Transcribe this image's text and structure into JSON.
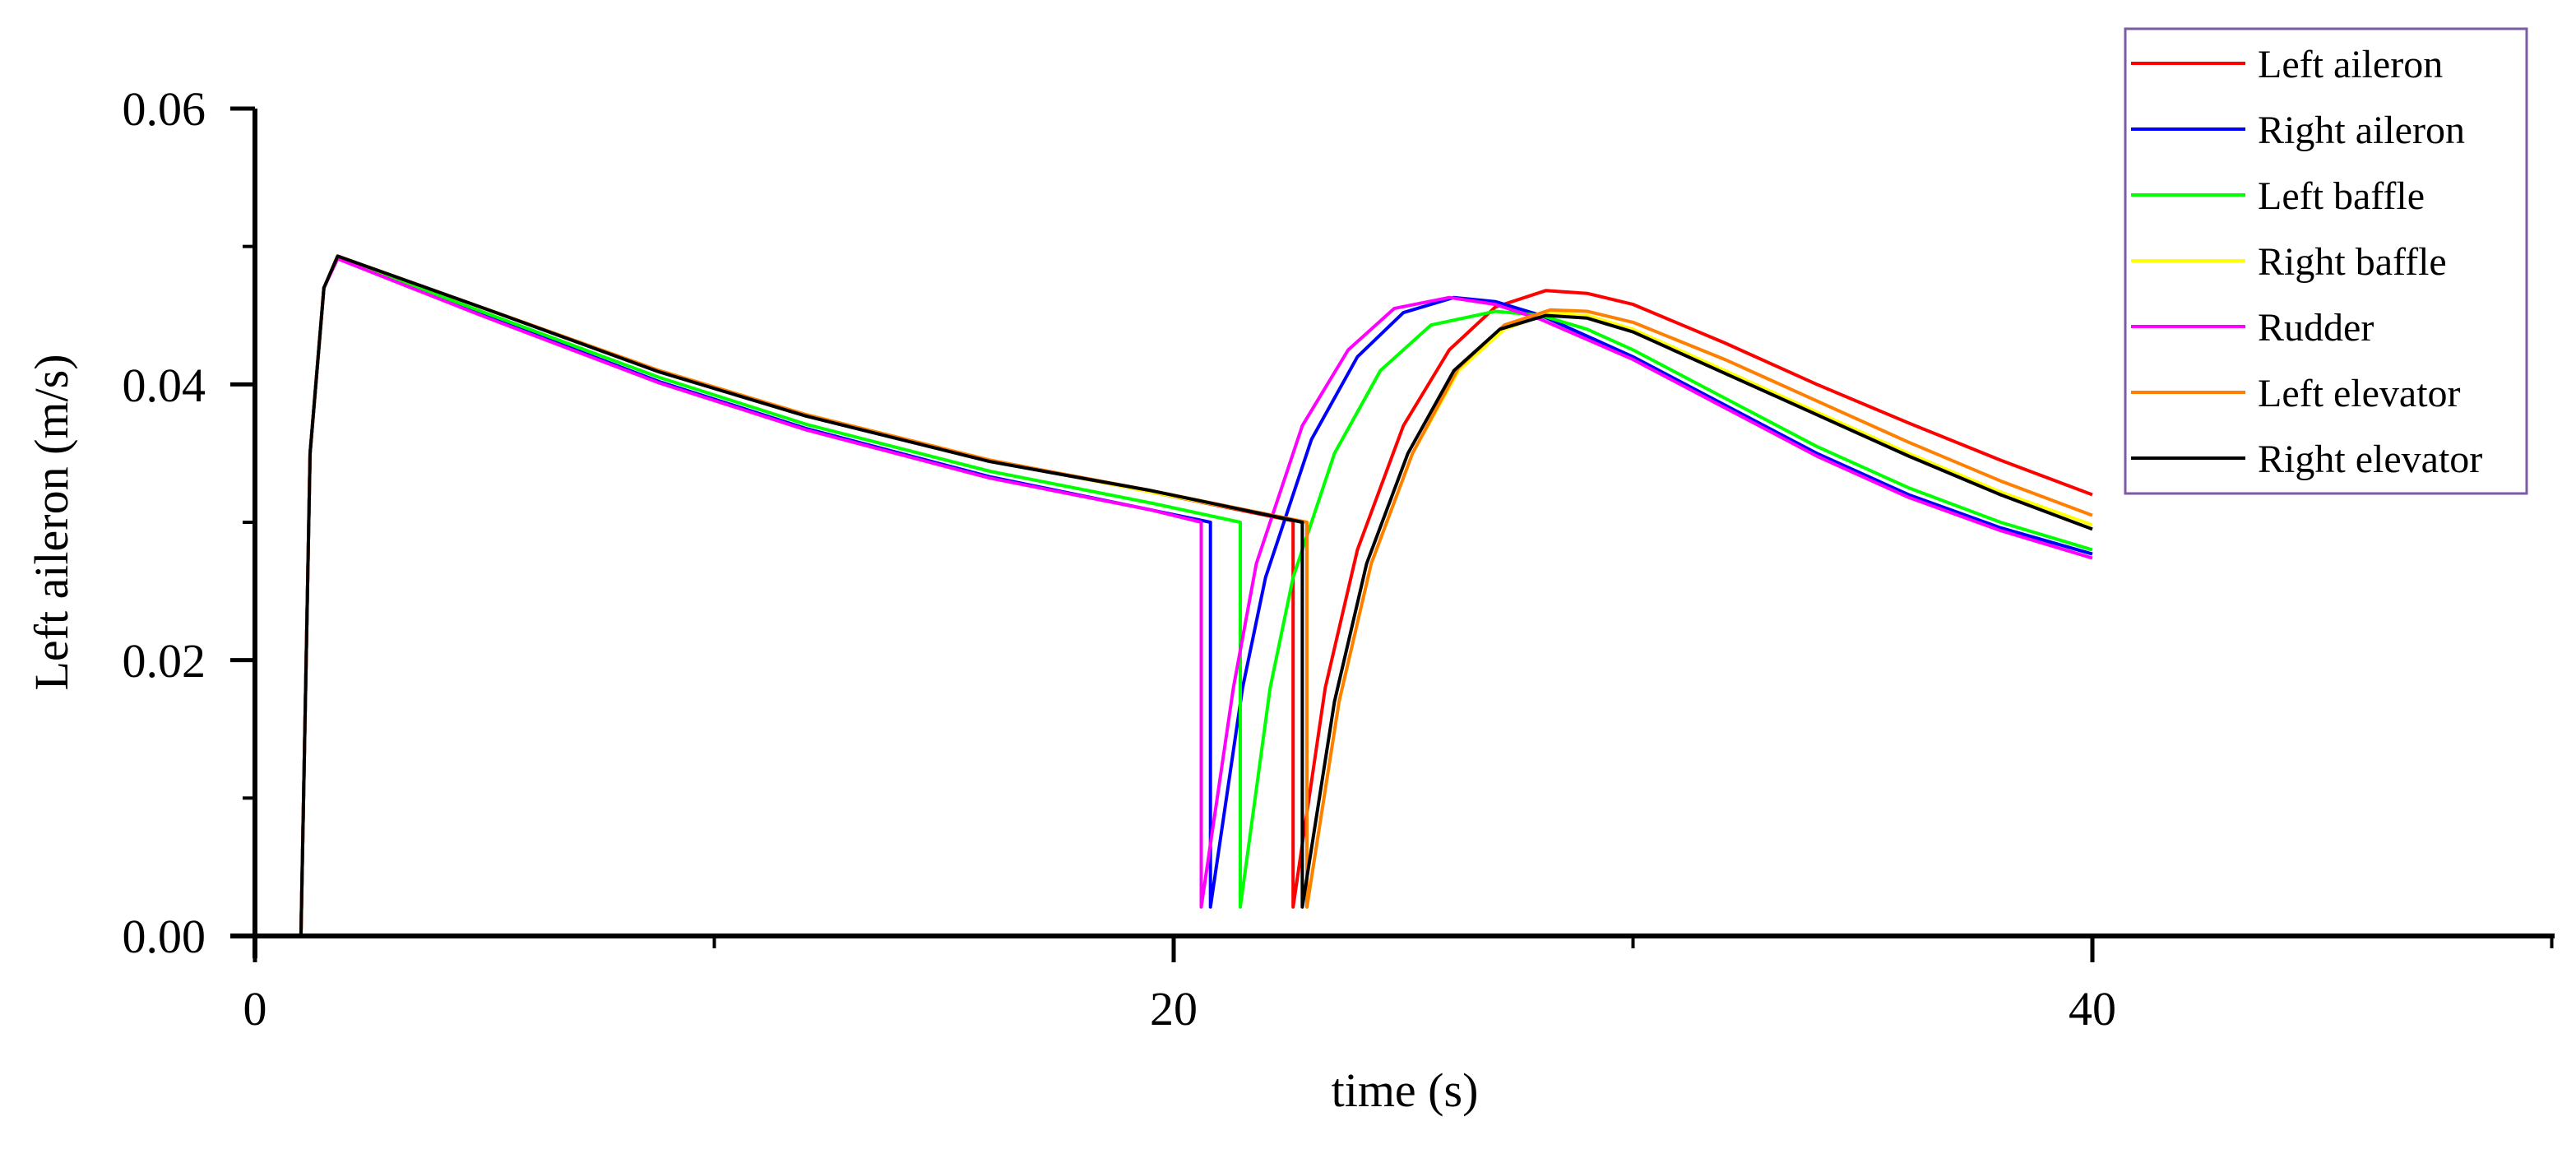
{
  "chart_data": {
    "type": "line",
    "title": "",
    "xlabel": "time (s)",
    "ylabel": "Left aileron (m/s)",
    "xlim": [
      0,
      50
    ],
    "ylim": [
      0,
      0.06
    ],
    "x_ticks": [
      0,
      20,
      40
    ],
    "x_minor_ticks": [
      10,
      30,
      50
    ],
    "y_ticks": [
      0.0,
      0.02,
      0.04,
      0.06
    ],
    "y_tick_labels": [
      "0.00",
      "0.02",
      "0.04",
      "0.06"
    ],
    "y_minor_ticks": [
      0.01,
      0.03,
      0.05
    ],
    "grid": false,
    "legend_position": "upper right",
    "series": [
      {
        "name": "Left aileron",
        "color": "#ff0000",
        "points": [
          [
            1.0,
            0
          ],
          [
            1.2,
            0.035
          ],
          [
            1.5,
            0.047
          ],
          [
            1.8,
            0.0493
          ],
          [
            5,
            0.0455
          ],
          [
            8.8,
            0.041
          ],
          [
            12,
            0.0378
          ],
          [
            16,
            0.0345
          ],
          [
            19.5,
            0.0322
          ],
          [
            22.6,
            0.0301
          ],
          [
            22.6,
            0.0021
          ],
          [
            23.3,
            0.018
          ],
          [
            24,
            0.028
          ],
          [
            25,
            0.037
          ],
          [
            26,
            0.0425
          ],
          [
            27,
            0.0456
          ],
          [
            28.1,
            0.0468
          ],
          [
            29,
            0.0466
          ],
          [
            30,
            0.0458
          ],
          [
            32,
            0.043
          ],
          [
            34,
            0.04
          ],
          [
            36,
            0.0372
          ],
          [
            38,
            0.0345
          ],
          [
            40,
            0.032
          ]
        ]
      },
      {
        "name": "Right aileron",
        "color": "#0000ff",
        "points": [
          [
            1.0,
            0
          ],
          [
            1.2,
            0.035
          ],
          [
            1.5,
            0.047
          ],
          [
            1.8,
            0.0492
          ],
          [
            5,
            0.045
          ],
          [
            8.8,
            0.0402
          ],
          [
            12,
            0.0368
          ],
          [
            16,
            0.0333
          ],
          [
            19.5,
            0.0309
          ],
          [
            20.8,
            0.03
          ],
          [
            20.8,
            0.0021
          ],
          [
            21.5,
            0.018
          ],
          [
            22,
            0.026
          ],
          [
            23,
            0.036
          ],
          [
            24,
            0.042
          ],
          [
            25,
            0.0452
          ],
          [
            26.1,
            0.0463
          ],
          [
            27,
            0.046
          ],
          [
            28,
            0.045
          ],
          [
            30,
            0.042
          ],
          [
            32,
            0.0385
          ],
          [
            34,
            0.035
          ],
          [
            36,
            0.032
          ],
          [
            38,
            0.0296
          ],
          [
            40,
            0.0277
          ]
        ]
      },
      {
        "name": "Left baffle",
        "color": "#00ff00",
        "points": [
          [
            1.0,
            0
          ],
          [
            1.2,
            0.035
          ],
          [
            1.5,
            0.047
          ],
          [
            1.8,
            0.0492
          ],
          [
            5,
            0.0452
          ],
          [
            8.8,
            0.0405
          ],
          [
            12,
            0.0371
          ],
          [
            16,
            0.0337
          ],
          [
            19.5,
            0.0314
          ],
          [
            21.45,
            0.03
          ],
          [
            21.45,
            0.0021
          ],
          [
            22.1,
            0.018
          ],
          [
            22.6,
            0.026
          ],
          [
            23.5,
            0.035
          ],
          [
            24.5,
            0.041
          ],
          [
            25.6,
            0.0443
          ],
          [
            27.0,
            0.0453
          ],
          [
            28,
            0.045
          ],
          [
            29,
            0.044
          ],
          [
            30,
            0.0425
          ],
          [
            32,
            0.039
          ],
          [
            34,
            0.0355
          ],
          [
            36,
            0.0325
          ],
          [
            38,
            0.03
          ],
          [
            40,
            0.028
          ]
        ]
      },
      {
        "name": "Right baffle",
        "color": "#ffff00",
        "points": [
          [
            1.0,
            0
          ],
          [
            1.2,
            0.035
          ],
          [
            1.5,
            0.047
          ],
          [
            1.8,
            0.0493
          ],
          [
            5,
            0.0455
          ],
          [
            8.8,
            0.041
          ],
          [
            12,
            0.0378
          ],
          [
            16,
            0.0345
          ],
          [
            19.5,
            0.0322
          ],
          [
            22.9,
            0.03
          ],
          [
            22.9,
            0.0021
          ],
          [
            23.6,
            0.017
          ],
          [
            24.3,
            0.027
          ],
          [
            25.2,
            0.035
          ],
          [
            26.2,
            0.041
          ],
          [
            27.2,
            0.044
          ],
          [
            28.2,
            0.0452
          ],
          [
            29,
            0.045
          ],
          [
            30,
            0.044
          ],
          [
            32,
            0.041
          ],
          [
            34,
            0.038
          ],
          [
            36,
            0.035
          ],
          [
            38,
            0.0322
          ],
          [
            40,
            0.0298
          ]
        ]
      },
      {
        "name": "Rudder",
        "color": "#ff00ff",
        "points": [
          [
            1.0,
            0
          ],
          [
            1.2,
            0.035
          ],
          [
            1.5,
            0.047
          ],
          [
            1.8,
            0.0491
          ],
          [
            5,
            0.0449
          ],
          [
            8.8,
            0.0401
          ],
          [
            12,
            0.0367
          ],
          [
            16,
            0.0332
          ],
          [
            19.5,
            0.0309
          ],
          [
            20.6,
            0.03
          ],
          [
            20.6,
            0.0021
          ],
          [
            21.3,
            0.018
          ],
          [
            21.8,
            0.027
          ],
          [
            22.8,
            0.037
          ],
          [
            23.8,
            0.0425
          ],
          [
            24.8,
            0.0455
          ],
          [
            26.0,
            0.0463
          ],
          [
            27,
            0.0458
          ],
          [
            28,
            0.0447
          ],
          [
            30,
            0.0418
          ],
          [
            32,
            0.0383
          ],
          [
            34,
            0.0348
          ],
          [
            36,
            0.0318
          ],
          [
            38,
            0.0294
          ],
          [
            40,
            0.0274
          ]
        ]
      },
      {
        "name": "Left elevator",
        "color": "#ff8000",
        "points": [
          [
            1.0,
            0
          ],
          [
            1.2,
            0.035
          ],
          [
            1.5,
            0.047
          ],
          [
            1.8,
            0.0493
          ],
          [
            5,
            0.0455
          ],
          [
            8.8,
            0.041
          ],
          [
            12,
            0.0378
          ],
          [
            16,
            0.0345
          ],
          [
            19.5,
            0.0323
          ],
          [
            22.9,
            0.03
          ],
          [
            22.9,
            0.0021
          ],
          [
            23.6,
            0.017
          ],
          [
            24.3,
            0.027
          ],
          [
            25.2,
            0.035
          ],
          [
            26.2,
            0.0412
          ],
          [
            27.2,
            0.0443
          ],
          [
            28.2,
            0.0454
          ],
          [
            29,
            0.0453
          ],
          [
            30,
            0.0445
          ],
          [
            32,
            0.0418
          ],
          [
            34,
            0.0388
          ],
          [
            36,
            0.0358
          ],
          [
            38,
            0.033
          ],
          [
            40,
            0.0305
          ]
        ]
      },
      {
        "name": "Right elevator",
        "color": "#000000",
        "points": [
          [
            1.0,
            0
          ],
          [
            1.2,
            0.035
          ],
          [
            1.5,
            0.047
          ],
          [
            1.8,
            0.0493
          ],
          [
            5,
            0.0455
          ],
          [
            8.8,
            0.0409
          ],
          [
            12,
            0.0377
          ],
          [
            16,
            0.0344
          ],
          [
            19.5,
            0.0323
          ],
          [
            22.8,
            0.03
          ],
          [
            22.8,
            0.0021
          ],
          [
            23.5,
            0.017
          ],
          [
            24.2,
            0.027
          ],
          [
            25.1,
            0.035
          ],
          [
            26.1,
            0.041
          ],
          [
            27.1,
            0.044
          ],
          [
            28.1,
            0.045
          ],
          [
            29,
            0.0448
          ],
          [
            30,
            0.0438
          ],
          [
            32,
            0.0408
          ],
          [
            34,
            0.0378
          ],
          [
            36,
            0.0348
          ],
          [
            38,
            0.032
          ],
          [
            40,
            0.0295
          ]
        ]
      }
    ]
  },
  "axes": {
    "x_title": "time (s)",
    "y_title": "Left aileron (m/s)",
    "x_tick_labels": [
      "0",
      "20",
      "40"
    ],
    "y_tick_labels": [
      "0.00",
      "0.02",
      "0.04",
      "0.06"
    ]
  },
  "legend": {
    "border_color": "#7b5aa6",
    "items": [
      {
        "label": "Left aileron",
        "color": "#ff0000"
      },
      {
        "label": "Right aileron",
        "color": "#0000ff"
      },
      {
        "label": "Left baffle",
        "color": "#00ff00"
      },
      {
        "label": "Right baffle",
        "color": "#ffff00"
      },
      {
        "label": "Rudder",
        "color": "#ff00ff"
      },
      {
        "label": "Left elevator",
        "color": "#ff8000"
      },
      {
        "label": "Right elevator",
        "color": "#000000"
      }
    ]
  }
}
